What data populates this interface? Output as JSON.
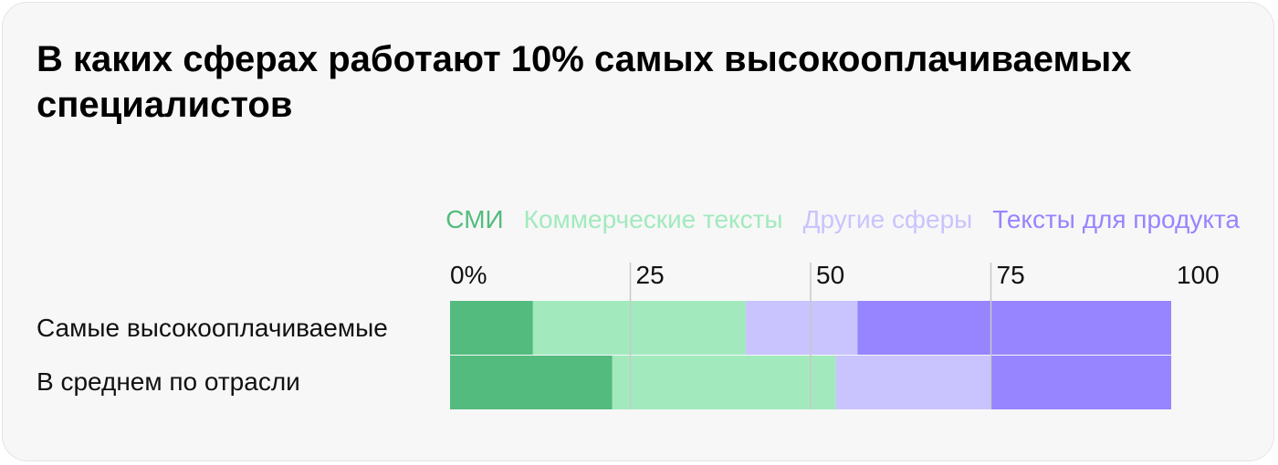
{
  "colors": {
    "smi": "#54bb7e",
    "commercial": "#a2eabe",
    "other": "#c9c4fd",
    "product": "#9784ff",
    "card_background": "#f7f7f7",
    "gridline": "#c8c8c8"
  },
  "chart_data": {
    "type": "bar",
    "orientation": "horizontal",
    "stacked": true,
    "title": "В каких сферах работают 10% самых высокооплачиваемых специалистов",
    "categories": [
      "Самые высокооплачиваемые",
      "В среднем по отрасли"
    ],
    "series": [
      {
        "name": "СМИ",
        "color_key": "smi",
        "values": [
          11.5,
          22.5
        ]
      },
      {
        "name": "Коммерческие тексты",
        "color_key": "commercial",
        "values": [
          29.5,
          31
        ]
      },
      {
        "name": "Другие сферы",
        "color_key": "other",
        "values": [
          15.5,
          21.5
        ]
      },
      {
        "name": "Тексты для продукта",
        "color_key": "product",
        "values": [
          43.5,
          25
        ]
      }
    ],
    "xlim": [
      0,
      100
    ],
    "x_ticks": [
      0,
      25,
      50,
      75,
      100
    ],
    "x_tick_labels": [
      "0%",
      "25",
      "50",
      "75",
      "100"
    ],
    "legend_position": "top-right",
    "grid": true
  }
}
